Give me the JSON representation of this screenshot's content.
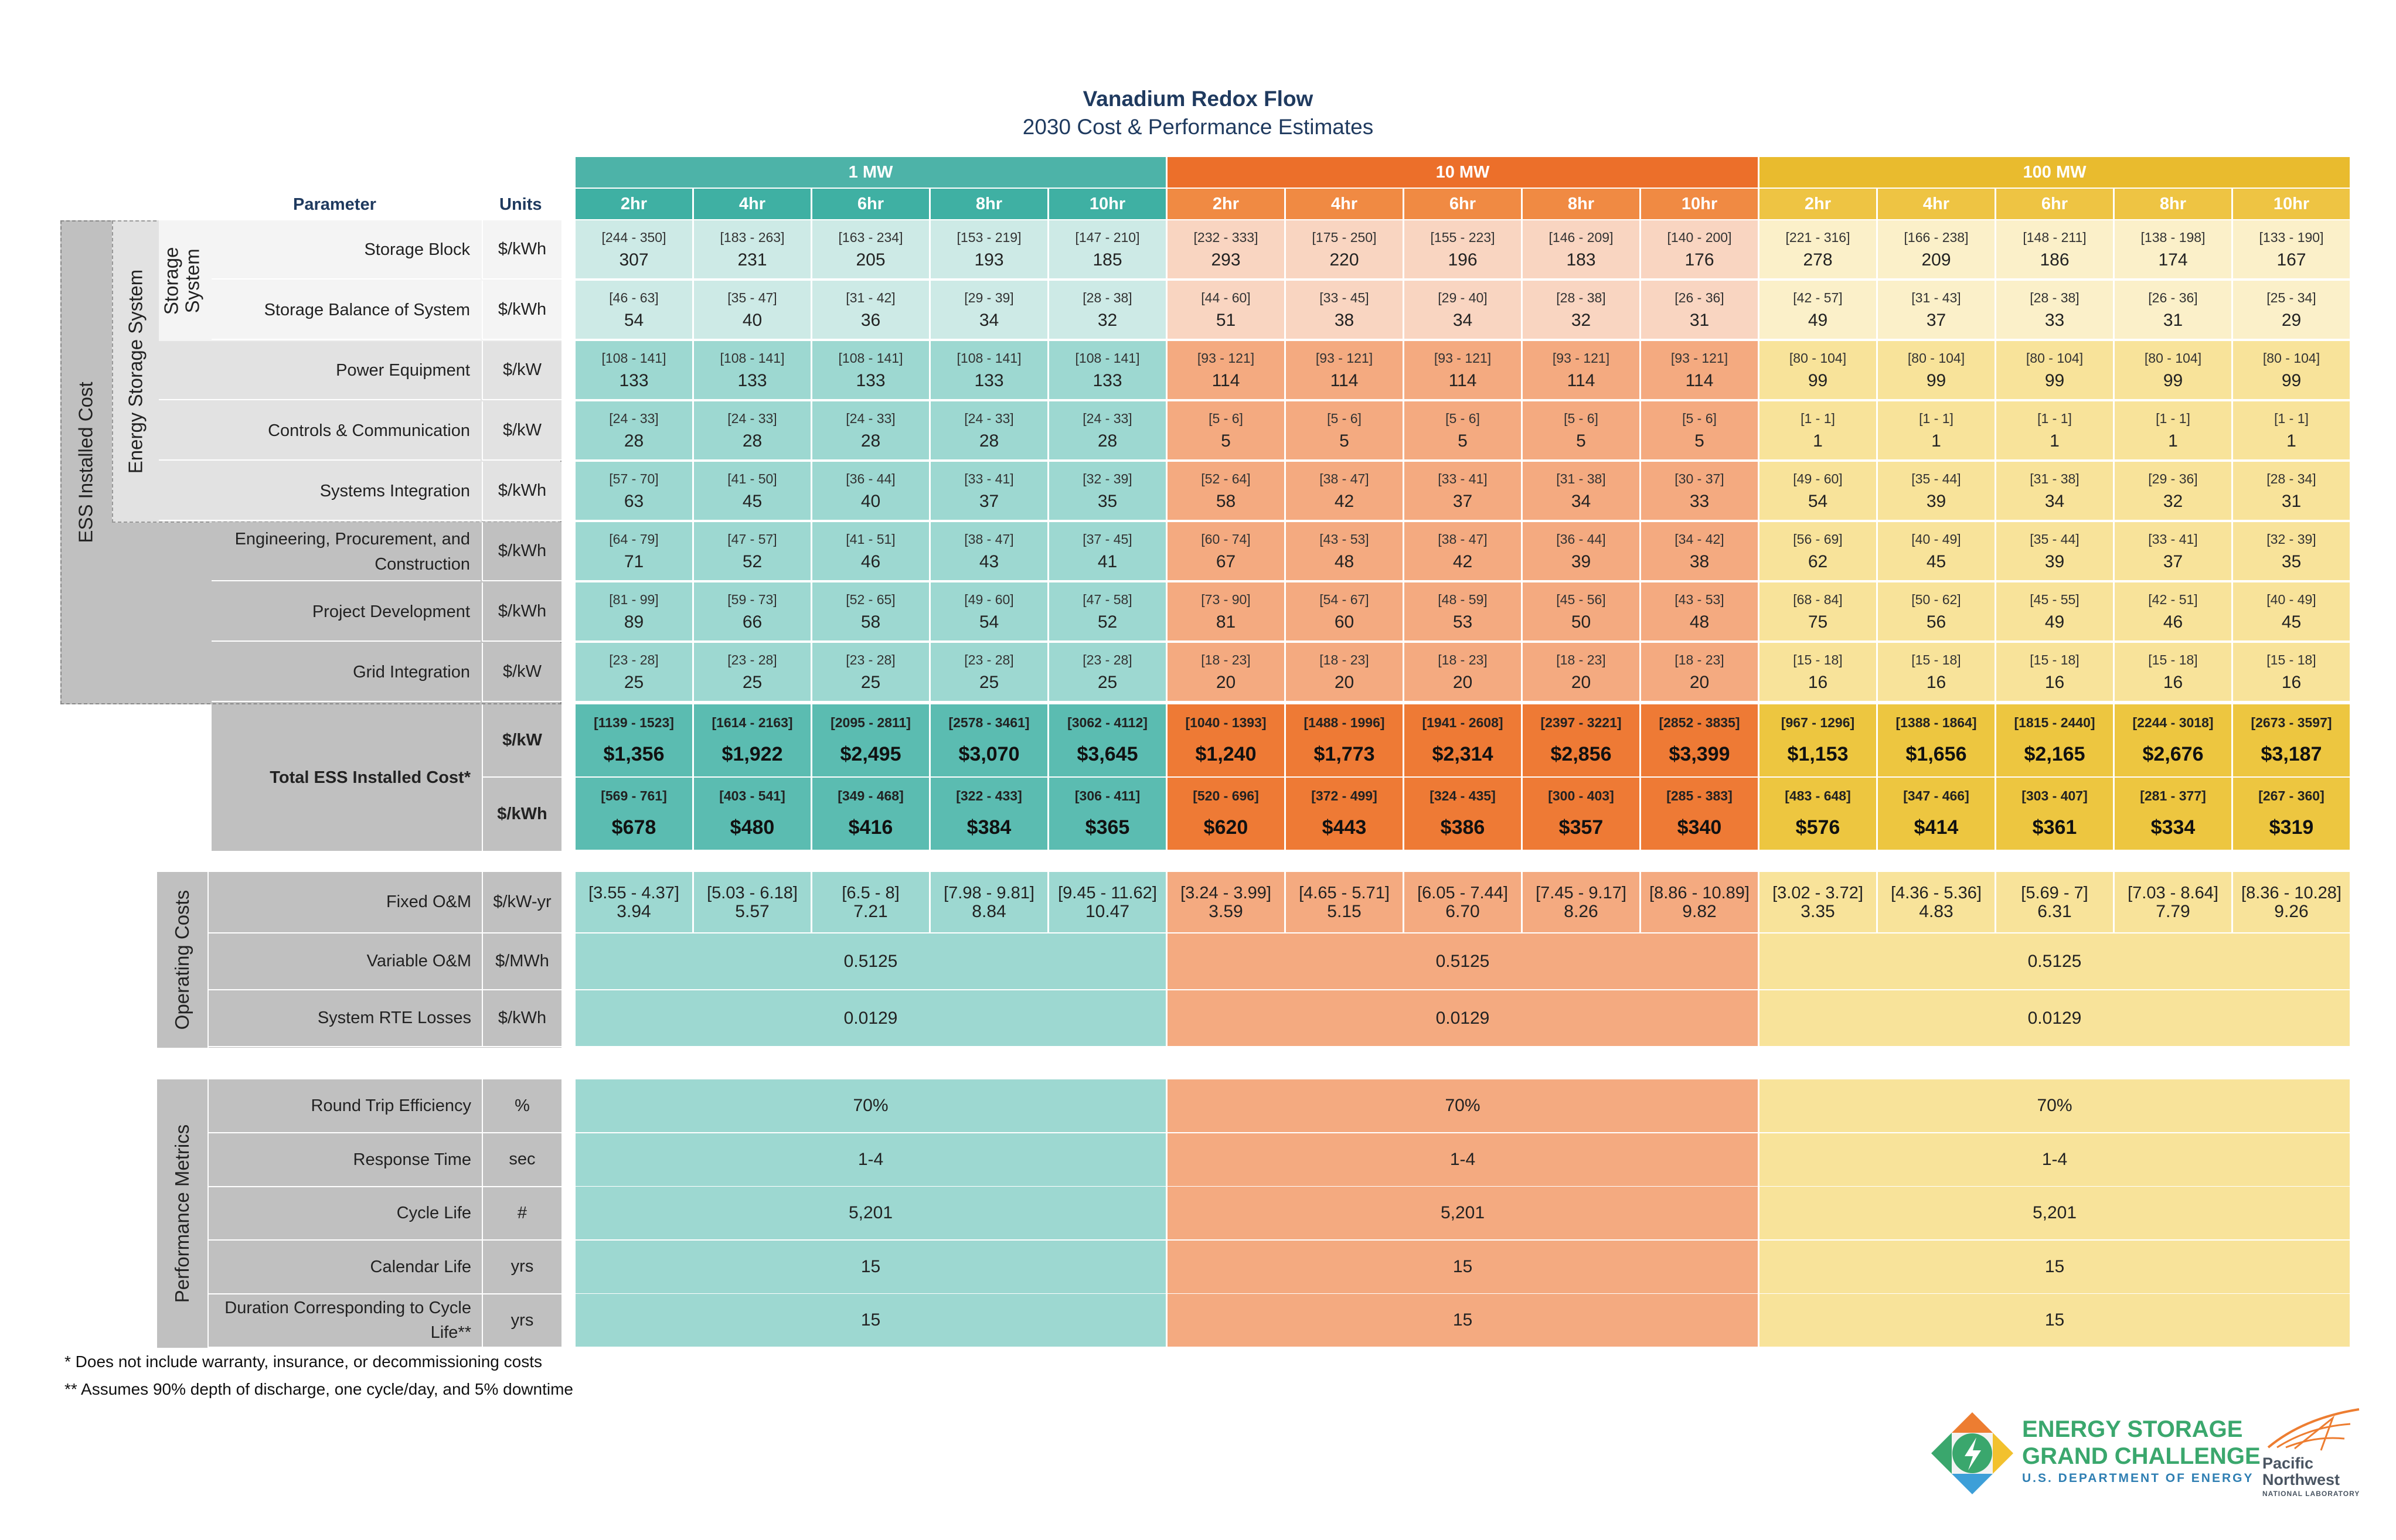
{
  "title": "Vanadium Redox Flow",
  "subtitle": "2030 Cost & Performance Estimates",
  "header": {
    "parameter": "Parameter",
    "units": "Units",
    "groups": [
      {
        "label": "1 MW",
        "color": "#4db3a8",
        "sub_color": "#3fb0a3"
      },
      {
        "label": "10 MW",
        "color": "#ec6f2a",
        "sub_color": "#f08a43"
      },
      {
        "label": "100 MW",
        "color": "#e9bb2e",
        "sub_color": "#eec443"
      }
    ],
    "durations": [
      "2hr",
      "4hr",
      "6hr",
      "8hr",
      "10hr"
    ]
  },
  "side_labels": {
    "ess_installed_cost": "ESS Installed Cost",
    "energy_storage_system": "Energy Storage System",
    "storage_system": [
      "Storage",
      "System"
    ],
    "operating_costs": "Operating Costs",
    "performance_metrics": "Performance Metrics"
  },
  "cost_rows": [
    {
      "param": "Storage Block",
      "unit": "$/kWh",
      "cells": [
        [
          "[244 - 350]",
          "307"
        ],
        [
          "[183 - 263]",
          "231"
        ],
        [
          "[163 - 234]",
          "205"
        ],
        [
          "[153 - 219]",
          "193"
        ],
        [
          "[147 - 210]",
          "185"
        ],
        [
          "[232 - 333]",
          "293"
        ],
        [
          "[175 - 250]",
          "220"
        ],
        [
          "[155 - 223]",
          "196"
        ],
        [
          "[146 - 209]",
          "183"
        ],
        [
          "[140 - 200]",
          "176"
        ],
        [
          "[221 - 316]",
          "278"
        ],
        [
          "[166 - 238]",
          "209"
        ],
        [
          "[148 - 211]",
          "186"
        ],
        [
          "[138 - 198]",
          "174"
        ],
        [
          "[133 - 190]",
          "167"
        ]
      ]
    },
    {
      "param": "Storage Balance of System",
      "unit": "$/kWh",
      "cells": [
        [
          "[46 - 63]",
          "54"
        ],
        [
          "[35 - 47]",
          "40"
        ],
        [
          "[31 - 42]",
          "36"
        ],
        [
          "[29 - 39]",
          "34"
        ],
        [
          "[28 - 38]",
          "32"
        ],
        [
          "[44 - 60]",
          "51"
        ],
        [
          "[33 - 45]",
          "38"
        ],
        [
          "[29 - 40]",
          "34"
        ],
        [
          "[28 - 38]",
          "32"
        ],
        [
          "[26 - 36]",
          "31"
        ],
        [
          "[42 - 57]",
          "49"
        ],
        [
          "[31 - 43]",
          "37"
        ],
        [
          "[28 - 38]",
          "33"
        ],
        [
          "[26 - 36]",
          "31"
        ],
        [
          "[25 - 34]",
          "29"
        ]
      ]
    },
    {
      "param": "Power Equipment",
      "unit": "$/kW",
      "cells": [
        [
          "[108 - 141]",
          "133"
        ],
        [
          "[108 - 141]",
          "133"
        ],
        [
          "[108 - 141]",
          "133"
        ],
        [
          "[108 - 141]",
          "133"
        ],
        [
          "[108 - 141]",
          "133"
        ],
        [
          "[93 - 121]",
          "114"
        ],
        [
          "[93 - 121]",
          "114"
        ],
        [
          "[93 - 121]",
          "114"
        ],
        [
          "[93 - 121]",
          "114"
        ],
        [
          "[93 - 121]",
          "114"
        ],
        [
          "[80 - 104]",
          "99"
        ],
        [
          "[80 - 104]",
          "99"
        ],
        [
          "[80 - 104]",
          "99"
        ],
        [
          "[80 - 104]",
          "99"
        ],
        [
          "[80 - 104]",
          "99"
        ]
      ]
    },
    {
      "param": "Controls & Communication",
      "unit": "$/kW",
      "cells": [
        [
          "[24 - 33]",
          "28"
        ],
        [
          "[24 - 33]",
          "28"
        ],
        [
          "[24 - 33]",
          "28"
        ],
        [
          "[24 - 33]",
          "28"
        ],
        [
          "[24 - 33]",
          "28"
        ],
        [
          "[5 - 6]",
          "5"
        ],
        [
          "[5 - 6]",
          "5"
        ],
        [
          "[5 - 6]",
          "5"
        ],
        [
          "[5 - 6]",
          "5"
        ],
        [
          "[5 - 6]",
          "5"
        ],
        [
          "[1 - 1]",
          "1"
        ],
        [
          "[1 - 1]",
          "1"
        ],
        [
          "[1 - 1]",
          "1"
        ],
        [
          "[1 - 1]",
          "1"
        ],
        [
          "[1 - 1]",
          "1"
        ]
      ]
    },
    {
      "param": "Systems Integration",
      "unit": "$/kWh",
      "cells": [
        [
          "[57 - 70]",
          "63"
        ],
        [
          "[41 - 50]",
          "45"
        ],
        [
          "[36 - 44]",
          "40"
        ],
        [
          "[33 - 41]",
          "37"
        ],
        [
          "[32 - 39]",
          "35"
        ],
        [
          "[52 - 64]",
          "58"
        ],
        [
          "[38 - 47]",
          "42"
        ],
        [
          "[33 - 41]",
          "37"
        ],
        [
          "[31 - 38]",
          "34"
        ],
        [
          "[30 - 37]",
          "33"
        ],
        [
          "[49 - 60]",
          "54"
        ],
        [
          "[35 - 44]",
          "39"
        ],
        [
          "[31 - 38]",
          "34"
        ],
        [
          "[29 - 36]",
          "32"
        ],
        [
          "[28 - 34]",
          "31"
        ]
      ]
    },
    {
      "param": "Engineering, Procurement, and Construction",
      "unit": "$/kWh",
      "cells": [
        [
          "[64 - 79]",
          "71"
        ],
        [
          "[47 - 57]",
          "52"
        ],
        [
          "[41 - 51]",
          "46"
        ],
        [
          "[38 - 47]",
          "43"
        ],
        [
          "[37 - 45]",
          "41"
        ],
        [
          "[60 - 74]",
          "67"
        ],
        [
          "[43 - 53]",
          "48"
        ],
        [
          "[38 - 47]",
          "42"
        ],
        [
          "[36 - 44]",
          "39"
        ],
        [
          "[34 - 42]",
          "38"
        ],
        [
          "[56 - 69]",
          "62"
        ],
        [
          "[40 - 49]",
          "45"
        ],
        [
          "[35 - 44]",
          "39"
        ],
        [
          "[33 - 41]",
          "37"
        ],
        [
          "[32 - 39]",
          "35"
        ]
      ]
    },
    {
      "param": "Project Development",
      "unit": "$/kWh",
      "cells": [
        [
          "[81 - 99]",
          "89"
        ],
        [
          "[59 - 73]",
          "66"
        ],
        [
          "[52 - 65]",
          "58"
        ],
        [
          "[49 - 60]",
          "54"
        ],
        [
          "[47 - 58]",
          "52"
        ],
        [
          "[73 - 90]",
          "81"
        ],
        [
          "[54 - 67]",
          "60"
        ],
        [
          "[48 - 59]",
          "53"
        ],
        [
          "[45 - 56]",
          "50"
        ],
        [
          "[43 - 53]",
          "48"
        ],
        [
          "[68 - 84]",
          "75"
        ],
        [
          "[50 - 62]",
          "56"
        ],
        [
          "[45 - 55]",
          "49"
        ],
        [
          "[42 - 51]",
          "46"
        ],
        [
          "[40 - 49]",
          "45"
        ]
      ]
    },
    {
      "param": "Grid Integration",
      "unit": "$/kW",
      "cells": [
        [
          "[23 - 28]",
          "25"
        ],
        [
          "[23 - 28]",
          "25"
        ],
        [
          "[23 - 28]",
          "25"
        ],
        [
          "[23 - 28]",
          "25"
        ],
        [
          "[23 - 28]",
          "25"
        ],
        [
          "[18 - 23]",
          "20"
        ],
        [
          "[18 - 23]",
          "20"
        ],
        [
          "[18 - 23]",
          "20"
        ],
        [
          "[18 - 23]",
          "20"
        ],
        [
          "[18 - 23]",
          "20"
        ],
        [
          "[15 - 18]",
          "16"
        ],
        [
          "[15 - 18]",
          "16"
        ],
        [
          "[15 - 18]",
          "16"
        ],
        [
          "[15 - 18]",
          "16"
        ],
        [
          "[15 - 18]",
          "16"
        ]
      ]
    }
  ],
  "total": {
    "label": "Total ESS Installed Cost*",
    "rows": [
      {
        "unit": "$/kW",
        "cells": [
          [
            "[1139 - 1523]",
            "$1,356"
          ],
          [
            "[1614 - 2163]",
            "$1,922"
          ],
          [
            "[2095 - 2811]",
            "$2,495"
          ],
          [
            "[2578 - 3461]",
            "$3,070"
          ],
          [
            "[3062 - 4112]",
            "$3,645"
          ],
          [
            "[1040 - 1393]",
            "$1,240"
          ],
          [
            "[1488 - 1996]",
            "$1,773"
          ],
          [
            "[1941 - 2608]",
            "$2,314"
          ],
          [
            "[2397 - 3221]",
            "$2,856"
          ],
          [
            "[2852 - 3835]",
            "$3,399"
          ],
          [
            "[967 - 1296]",
            "$1,153"
          ],
          [
            "[1388 - 1864]",
            "$1,656"
          ],
          [
            "[1815 - 2440]",
            "$2,165"
          ],
          [
            "[2244 - 3018]",
            "$2,676"
          ],
          [
            "[2673 - 3597]",
            "$3,187"
          ]
        ]
      },
      {
        "unit": "$/kWh",
        "cells": [
          [
            "[569 - 761]",
            "$678"
          ],
          [
            "[403 - 541]",
            "$480"
          ],
          [
            "[349 - 468]",
            "$416"
          ],
          [
            "[322 - 433]",
            "$384"
          ],
          [
            "[306 - 411]",
            "$365"
          ],
          [
            "[520 - 696]",
            "$620"
          ],
          [
            "[372 - 499]",
            "$443"
          ],
          [
            "[324 - 435]",
            "$386"
          ],
          [
            "[300 - 403]",
            "$357"
          ],
          [
            "[285 - 383]",
            "$340"
          ],
          [
            "[483 - 648]",
            "$576"
          ],
          [
            "[347 - 466]",
            "$414"
          ],
          [
            "[303 - 407]",
            "$361"
          ],
          [
            "[281 - 377]",
            "$334"
          ],
          [
            "[267 - 360]",
            "$319"
          ]
        ]
      }
    ]
  },
  "operating": {
    "fixed_om": {
      "param": "Fixed O&M",
      "unit": "$/kW-yr",
      "cells": [
        [
          "[3.55 - 4.37]",
          "3.94"
        ],
        [
          "[5.03 - 6.18]",
          "5.57"
        ],
        [
          "[6.5 - 8]",
          "7.21"
        ],
        [
          "[7.98 - 9.81]",
          "8.84"
        ],
        [
          "[9.45 - 11.62]",
          "10.47"
        ],
        [
          "[3.24 - 3.99]",
          "3.59"
        ],
        [
          "[4.65 - 5.71]",
          "5.15"
        ],
        [
          "[6.05 - 7.44]",
          "6.70"
        ],
        [
          "[7.45 - 9.17]",
          "8.26"
        ],
        [
          "[8.86 - 10.89]",
          "9.82"
        ],
        [
          "[3.02 - 3.72]",
          "3.35"
        ],
        [
          "[4.36 - 5.36]",
          "4.83"
        ],
        [
          "[5.69 - 7]",
          "6.31"
        ],
        [
          "[7.03 - 8.64]",
          "7.79"
        ],
        [
          "[8.36 - 10.28]",
          "9.26"
        ]
      ]
    },
    "merged_rows": [
      {
        "param": "Variable O&M",
        "unit": "$/MWh",
        "values": [
          "0.5125",
          "0.5125",
          "0.5125"
        ]
      },
      {
        "param": "System RTE Losses",
        "unit": "$/kWh",
        "values": [
          "0.0129",
          "0.0129",
          "0.0129"
        ]
      }
    ]
  },
  "performance": [
    {
      "param": "Round Trip Efficiency",
      "unit": "%",
      "values": [
        "70%",
        "70%",
        "70%"
      ]
    },
    {
      "param": "Response Time",
      "unit": "sec",
      "values": [
        "1-4",
        "1-4",
        "1-4"
      ]
    },
    {
      "param": "Cycle Life",
      "unit": "#",
      "values": [
        "5,201",
        "5,201",
        "5,201"
      ]
    },
    {
      "param": "Calendar Life",
      "unit": "yrs",
      "values": [
        "15",
        "15",
        "15"
      ]
    },
    {
      "param": "Duration Corresponding to Cycle Life**",
      "unit": "yrs",
      "values": [
        "15",
        "15",
        "15"
      ]
    }
  ],
  "footnotes": [
    "* Does not include warranty, insurance, or decommissioning costs",
    "** Assumes 90% depth of discharge, one cycle/day, and 5% downtime"
  ],
  "logos": {
    "esgc": [
      "ENERGY STORAGE",
      "GRAND CHALLENGE",
      "U.S. DEPARTMENT OF ENERGY"
    ],
    "pnnl": [
      "Pacific",
      "Northwest",
      "NATIONAL LABORATORY"
    ]
  },
  "colors": {
    "mw1_light": "#cdeae6",
    "mw1_mid": "#9dd8d1",
    "mw1_dark": "#5bbcb1",
    "mw10_light": "#f9d5c1",
    "mw10_mid": "#f4aa80",
    "mw10_dark": "#ee7a35",
    "mw100_light": "#fbf0c9",
    "mw100_mid": "#f8e39a",
    "mw100_dark": "#edc640",
    "label_gray": "#c0c0c0",
    "label_light": "#e2e2e2"
  }
}
